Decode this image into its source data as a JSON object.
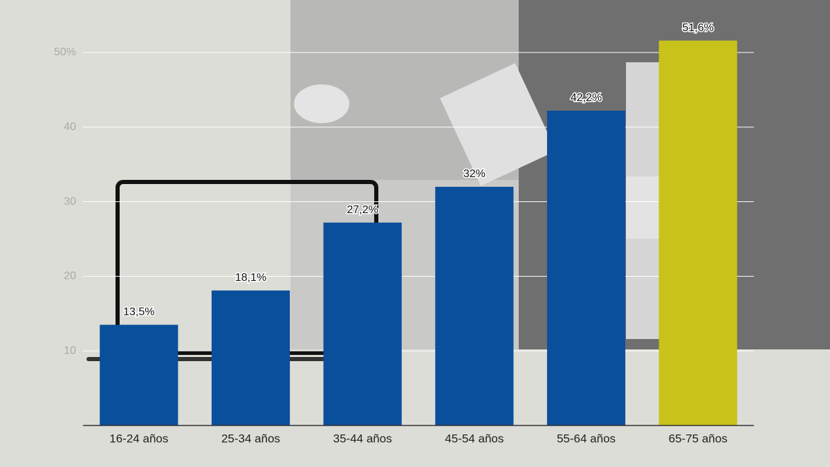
{
  "chart_data": {
    "type": "bar",
    "categories": [
      "16-24 años",
      "25-34 años",
      "35-44 años",
      "45-54 años",
      "55-64 años",
      "65-75 años"
    ],
    "values": [
      13.5,
      18.1,
      27.2,
      32,
      42.2,
      51.6
    ],
    "value_labels": [
      "13,5%",
      "18,1%",
      "27,2%",
      "32%",
      "42,2%",
      "51,6%"
    ],
    "colors": [
      "#0a4f9b",
      "#0a4f9b",
      "#0a4f9b",
      "#0a4f9b",
      "#0a4f9b",
      "#c9c21a"
    ],
    "ylim": [
      0,
      55
    ],
    "yticks": [
      10,
      20,
      30,
      {
        "value": 40,
        "label": "40"
      },
      {
        "value": 50,
        "label": "50%"
      }
    ],
    "grid": true
  }
}
